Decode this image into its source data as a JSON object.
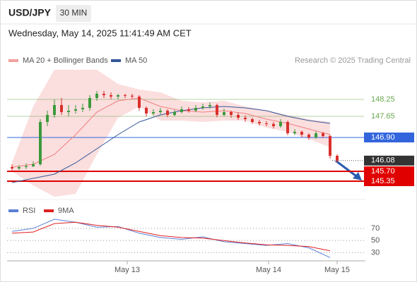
{
  "header": {
    "symbol": "USD/JPY",
    "timeframe": "30 MIN",
    "datetime": "Wednesday, May 14, 2025 11:41:49 AM CET",
    "credit": "Research © 2025 Trading Central"
  },
  "chart_data": [
    {
      "type": "candlestick",
      "up_color": "#3c9a3c",
      "down_color": "#d9302c",
      "xlim": [
        -0.5,
        50
      ],
      "ylim": [
        144.7,
        149.4
      ],
      "open": [
        145.85,
        145.8,
        145.85,
        145.88,
        145.95,
        147.45,
        147.7,
        148.05,
        147.8,
        147.85,
        147.9,
        147.95,
        148.3,
        148.45,
        148.4,
        148.35,
        148.4,
        148.38,
        148.35,
        147.95,
        147.75,
        147.8,
        147.85,
        147.7,
        147.8,
        147.9,
        147.85,
        147.95,
        148.0,
        148.05,
        147.7,
        147.8,
        147.7,
        147.6,
        147.55,
        147.45,
        147.4,
        147.38,
        147.3,
        147.45,
        147.05,
        147.1,
        147.0,
        146.9,
        147.05,
        146.95,
        146.25
      ],
      "high": [
        145.95,
        145.92,
        145.98,
        146.05,
        147.55,
        147.85,
        148.25,
        148.3,
        148.05,
        148.05,
        148.1,
        148.4,
        148.55,
        148.55,
        148.5,
        148.45,
        148.45,
        148.45,
        148.4,
        148.0,
        147.9,
        147.95,
        147.9,
        147.88,
        148.0,
        147.98,
        148.05,
        148.1,
        148.15,
        148.1,
        147.92,
        147.85,
        147.78,
        147.68,
        147.6,
        147.52,
        147.48,
        147.45,
        147.55,
        147.5,
        147.2,
        147.15,
        147.05,
        147.12,
        147.1,
        147.0,
        146.3
      ],
      "low": [
        145.72,
        145.75,
        145.78,
        145.85,
        145.9,
        147.3,
        147.6,
        147.7,
        147.65,
        147.75,
        147.8,
        147.85,
        148.2,
        148.3,
        148.25,
        148.25,
        148.3,
        148.28,
        147.85,
        147.65,
        147.68,
        147.72,
        147.62,
        147.65,
        147.75,
        147.78,
        147.8,
        147.88,
        147.92,
        147.62,
        147.65,
        147.6,
        147.52,
        147.45,
        147.38,
        147.32,
        147.3,
        147.22,
        147.25,
        146.98,
        146.98,
        146.9,
        146.82,
        146.85,
        146.88,
        146.15,
        146.0
      ],
      "close": [
        145.8,
        145.85,
        145.88,
        145.95,
        147.45,
        147.7,
        148.05,
        147.8,
        147.85,
        147.9,
        147.95,
        148.3,
        148.45,
        148.4,
        148.35,
        148.4,
        148.38,
        148.35,
        147.95,
        147.75,
        147.8,
        147.85,
        147.7,
        147.8,
        147.9,
        147.85,
        147.95,
        148.0,
        148.05,
        147.7,
        147.8,
        147.7,
        147.6,
        147.55,
        147.45,
        147.4,
        147.38,
        147.3,
        147.45,
        147.05,
        147.1,
        147.0,
        146.9,
        147.05,
        146.95,
        146.25,
        146.08
      ],
      "band": {
        "name": "MA 20 + Bollinger Bands",
        "color": "#f4a0a0",
        "x": [
          0,
          3,
          6,
          9,
          12,
          15,
          18,
          21,
          24,
          27,
          30,
          33,
          36,
          39,
          42,
          45
        ],
        "upper": [
          146.0,
          148.0,
          149.3,
          149.3,
          149.3,
          148.8,
          148.6,
          148.5,
          148.2,
          148.15,
          148.2,
          148.0,
          147.85,
          147.7,
          147.55,
          147.45
        ],
        "lower": [
          145.7,
          145.2,
          144.8,
          144.9,
          146.3,
          147.6,
          148.0,
          147.5,
          147.5,
          147.45,
          147.5,
          147.5,
          147.25,
          147.1,
          146.85,
          146.55
        ],
        "values": [
          145.85,
          145.95,
          146.3,
          147.0,
          147.8,
          148.2,
          148.3,
          148.0,
          147.85,
          147.8,
          147.85,
          147.75,
          147.55,
          147.4,
          147.2,
          147.0
        ]
      },
      "series": [
        {
          "name": "MA 50",
          "color": "#34589a",
          "x": [
            0,
            3,
            6,
            9,
            12,
            15,
            18,
            21,
            24,
            27,
            30,
            33,
            36,
            39,
            42,
            45
          ],
          "values": [
            145.3,
            145.45,
            145.6,
            146.0,
            146.5,
            147.0,
            147.45,
            147.7,
            147.85,
            147.95,
            148.0,
            147.95,
            147.85,
            147.65,
            147.5,
            147.4
          ]
        }
      ],
      "levels": [
        {
          "value": 148.25,
          "label": "148.25",
          "color": "#6aa84f",
          "style": "text"
        },
        {
          "value": 147.65,
          "label": "147.65",
          "color": "#6aa84f",
          "style": "text"
        },
        {
          "value": 146.9,
          "label": "146.90",
          "color": "#3366dd",
          "style": "box"
        },
        {
          "value": 146.08,
          "label": "146.08",
          "color": "#333333",
          "style": "current"
        },
        {
          "value": 145.7,
          "label": "145.70",
          "color": "#e00000",
          "style": "box"
        },
        {
          "value": 145.35,
          "label": "145.35",
          "color": "#e00000",
          "style": "box"
        }
      ]
    },
    {
      "type": "line",
      "xlim": [
        -0.5,
        50
      ],
      "ylim": [
        20,
        92
      ],
      "yticks": [
        70,
        50,
        30
      ],
      "xticks": [
        {
          "value": 16.3,
          "label": "May 13"
        },
        {
          "value": 36.3,
          "label": "May 14"
        },
        {
          "value": 46,
          "label": "May 15"
        }
      ],
      "series": [
        {
          "name": "RSI",
          "color": "#5b7fd6",
          "x": [
            0,
            3,
            6,
            9,
            12,
            15,
            18,
            21,
            24,
            27,
            30,
            33,
            36,
            39,
            42,
            45
          ],
          "values": [
            65,
            70,
            85,
            80,
            72,
            73,
            62,
            55,
            52,
            56,
            48,
            45,
            42,
            45,
            38,
            22
          ]
        },
        {
          "name": "9MA",
          "color": "#e02020",
          "x": [
            0,
            3,
            6,
            9,
            12,
            15,
            18,
            21,
            24,
            27,
            30,
            33,
            36,
            39,
            42,
            45
          ],
          "values": [
            62,
            64,
            78,
            80,
            75,
            72,
            65,
            58,
            55,
            54,
            50,
            46,
            43,
            42,
            40,
            33
          ]
        }
      ]
    }
  ]
}
